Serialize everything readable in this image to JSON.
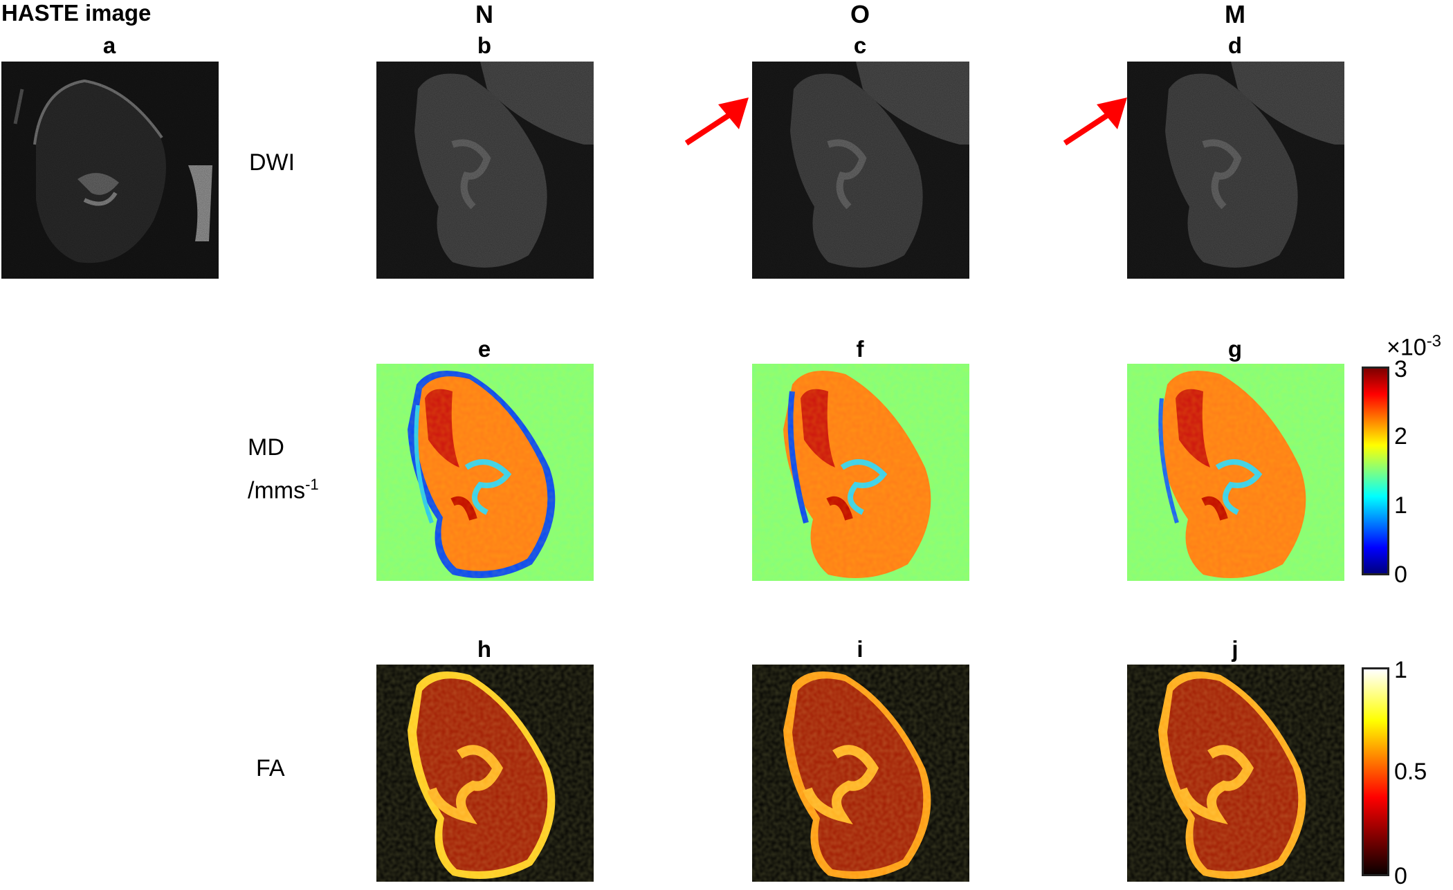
{
  "figure": {
    "haste_title": "HASTE image",
    "column_headers": [
      "N",
      "O",
      "M"
    ],
    "row_labels": {
      "dwi": "DWI",
      "md_line1": "MD",
      "md_line2_base": "/mms",
      "md_line2_exp": "-1",
      "fa": "FA"
    },
    "panel_letters": [
      "a",
      "b",
      "c",
      "d",
      "e",
      "f",
      "g",
      "h",
      "i",
      "j"
    ],
    "md_colorbar": {
      "scale_base": "×10",
      "scale_exp": "-3",
      "ticks": [
        "3",
        "2",
        "1",
        "0"
      ],
      "colormap": "jet",
      "range": [
        0,
        3
      ]
    },
    "fa_colorbar": {
      "ticks": [
        "1",
        "0.5",
        "0"
      ],
      "colormap": "hot",
      "range": [
        0,
        1
      ]
    },
    "arrow_color": "#ff0000",
    "md_background_color": "#80ff80",
    "fa_background_color": "#000000"
  }
}
